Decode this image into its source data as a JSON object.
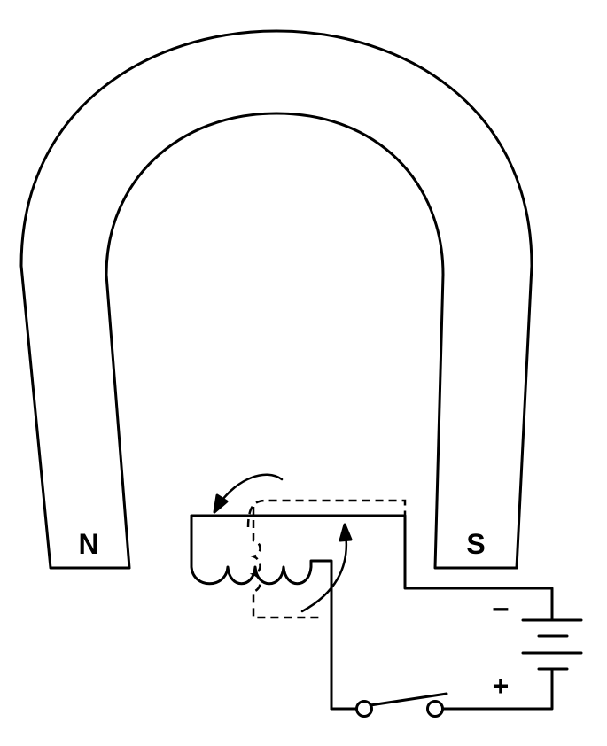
{
  "magnet": {
    "north_label": "N",
    "south_label": "S"
  },
  "battery": {
    "negative_label": "–",
    "positive_label": "+"
  },
  "colors": {
    "ink": "#000000",
    "background": "#ffffff"
  }
}
